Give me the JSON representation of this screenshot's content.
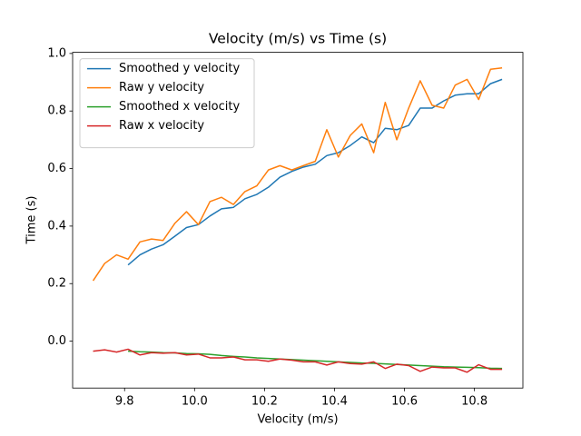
{
  "chart_data": {
    "type": "line",
    "title": "Velocity (m/s) vs Time (s)",
    "x_label": "Velocity (m/s)",
    "y_label": "Time (s)",
    "x": [
      9.71,
      9.743,
      9.777,
      9.81,
      9.844,
      9.877,
      9.91,
      9.944,
      9.977,
      10.011,
      10.044,
      10.077,
      10.111,
      10.144,
      10.178,
      10.211,
      10.244,
      10.278,
      10.311,
      10.345,
      10.378,
      10.411,
      10.445,
      10.478,
      10.512,
      10.545,
      10.578,
      10.612,
      10.645,
      10.679,
      10.712,
      10.745,
      10.779,
      10.812,
      10.846,
      10.879
    ],
    "series": [
      {
        "name": "Smoothed y velocity",
        "color": "#1f77b4",
        "values": [
          null,
          null,
          null,
          0.265,
          0.3,
          0.32,
          0.335,
          0.365,
          0.395,
          0.405,
          0.435,
          0.46,
          0.465,
          0.495,
          0.51,
          0.535,
          0.57,
          0.59,
          0.605,
          0.615,
          0.645,
          0.655,
          0.68,
          0.71,
          0.69,
          0.74,
          0.735,
          0.75,
          0.81,
          0.81,
          0.835,
          0.855,
          0.86,
          0.86,
          0.895,
          0.91
        ]
      },
      {
        "name": "Raw y velocity",
        "color": "#ff7f0e",
        "values": [
          0.21,
          0.27,
          0.3,
          0.285,
          0.345,
          0.355,
          0.35,
          0.41,
          0.45,
          0.405,
          0.485,
          0.5,
          0.475,
          0.52,
          0.54,
          0.595,
          0.61,
          0.595,
          0.61,
          0.625,
          0.735,
          0.64,
          0.715,
          0.755,
          0.655,
          0.83,
          0.7,
          0.81,
          0.905,
          0.82,
          0.81,
          0.89,
          0.91,
          0.84,
          0.945,
          0.95
        ]
      },
      {
        "name": "Smoothed x velocity",
        "color": "#2ca02c",
        "values": [
          null,
          null,
          null,
          -0.035,
          -0.037,
          -0.038,
          -0.04,
          -0.041,
          -0.043,
          -0.044,
          -0.046,
          -0.05,
          -0.053,
          -0.055,
          -0.058,
          -0.06,
          -0.062,
          -0.064,
          -0.066,
          -0.068,
          -0.07,
          -0.072,
          -0.074,
          -0.076,
          -0.077,
          -0.079,
          -0.081,
          -0.083,
          -0.085,
          -0.087,
          -0.089,
          -0.09,
          -0.091,
          -0.092,
          -0.094,
          -0.095
        ]
      },
      {
        "name": "Raw x velocity",
        "color": "#d62728",
        "values": [
          -0.035,
          -0.03,
          -0.038,
          -0.028,
          -0.048,
          -0.04,
          -0.042,
          -0.04,
          -0.048,
          -0.045,
          -0.058,
          -0.058,
          -0.055,
          -0.065,
          -0.065,
          -0.07,
          -0.062,
          -0.066,
          -0.072,
          -0.072,
          -0.083,
          -0.072,
          -0.078,
          -0.08,
          -0.072,
          -0.095,
          -0.08,
          -0.085,
          -0.105,
          -0.09,
          -0.093,
          -0.093,
          -0.108,
          -0.082,
          -0.098,
          -0.098
        ]
      }
    ],
    "xlim": [
      9.6515,
      10.9385
    ],
    "ylim": [
      -0.163,
      1.004
    ],
    "xticks": [
      9.8,
      {
        "value": 10,
        "label": "10.0"
      },
      10.2,
      10.4,
      10.6,
      10.8
    ],
    "yticks": [
      {
        "value": 0,
        "label": "0.0"
      },
      0.2,
      0.4,
      0.6,
      0.8,
      {
        "value": 1,
        "label": "1.0"
      }
    ],
    "grid": false,
    "legend": "upper-left"
  }
}
